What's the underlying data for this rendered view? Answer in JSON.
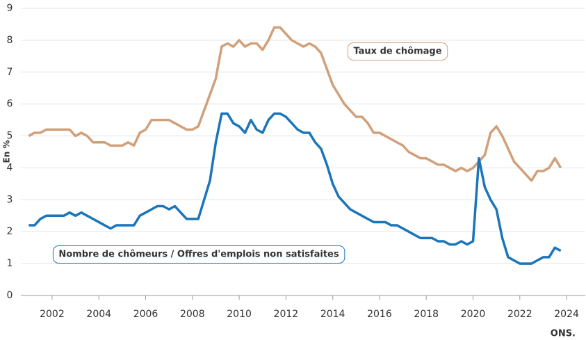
{
  "chart_data": {
    "type": "line",
    "ylabel": "En %",
    "source": "ONS.",
    "x": [
      2001,
      2001.25,
      2001.5,
      2001.75,
      2002,
      2002.25,
      2002.5,
      2002.75,
      2003,
      2003.25,
      2003.5,
      2003.75,
      2004,
      2004.25,
      2004.5,
      2004.75,
      2005,
      2005.25,
      2005.5,
      2005.75,
      2006,
      2006.25,
      2006.5,
      2006.75,
      2007,
      2007.25,
      2007.5,
      2007.75,
      2008,
      2008.25,
      2008.5,
      2008.75,
      2009,
      2009.25,
      2009.5,
      2009.75,
      2010,
      2010.25,
      2010.5,
      2010.75,
      2011,
      2011.25,
      2011.5,
      2011.75,
      2012,
      2012.25,
      2012.5,
      2012.75,
      2013,
      2013.25,
      2013.5,
      2013.75,
      2014,
      2014.25,
      2014.5,
      2014.75,
      2015,
      2015.25,
      2015.5,
      2015.75,
      2016,
      2016.25,
      2016.5,
      2016.75,
      2017,
      2017.25,
      2017.5,
      2017.75,
      2018,
      2018.25,
      2018.5,
      2018.75,
      2019,
      2019.25,
      2019.5,
      2019.75,
      2020,
      2020.25,
      2020.5,
      2020.75,
      2021,
      2021.25,
      2021.5,
      2021.75,
      2022,
      2022.25,
      2022.5,
      2022.75,
      2023,
      2023.25,
      2023.5,
      2023.75
    ],
    "series": [
      {
        "name": "Taux de chômage",
        "color": "#d0a07a",
        "values": [
          5.0,
          5.1,
          5.1,
          5.2,
          5.2,
          5.2,
          5.2,
          5.2,
          5.0,
          5.1,
          5.0,
          4.8,
          4.8,
          4.8,
          4.7,
          4.7,
          4.7,
          4.8,
          4.7,
          5.1,
          5.2,
          5.5,
          5.5,
          5.5,
          5.5,
          5.4,
          5.3,
          5.2,
          5.2,
          5.3,
          5.8,
          6.3,
          6.8,
          7.8,
          7.9,
          7.8,
          8.0,
          7.8,
          7.9,
          7.9,
          7.7,
          8.0,
          8.4,
          8.4,
          8.2,
          8.0,
          7.9,
          7.8,
          7.9,
          7.8,
          7.6,
          7.1,
          6.6,
          6.3,
          6.0,
          5.8,
          5.6,
          5.6,
          5.4,
          5.1,
          5.1,
          5.0,
          4.9,
          4.8,
          4.7,
          4.5,
          4.4,
          4.3,
          4.3,
          4.2,
          4.1,
          4.1,
          4.0,
          3.9,
          4.0,
          3.9,
          4.0,
          4.2,
          4.4,
          5.1,
          5.3,
          5.0,
          4.6,
          4.2,
          4.0,
          3.8,
          3.6,
          3.9,
          3.9,
          4.0,
          4.3,
          4.0
        ]
      },
      {
        "name": "Nombre de chômeurs / Offres d'emplois non satisfaites",
        "color": "#1a75bb",
        "values": [
          2.2,
          2.2,
          2.4,
          2.5,
          2.5,
          2.5,
          2.5,
          2.6,
          2.5,
          2.6,
          2.5,
          2.4,
          2.3,
          2.2,
          2.1,
          2.2,
          2.2,
          2.2,
          2.2,
          2.5,
          2.6,
          2.7,
          2.8,
          2.8,
          2.7,
          2.8,
          2.6,
          2.4,
          2.4,
          2.4,
          3.0,
          3.6,
          4.8,
          5.7,
          5.7,
          5.4,
          5.3,
          5.1,
          5.5,
          5.2,
          5.1,
          5.5,
          5.7,
          5.7,
          5.6,
          5.4,
          5.2,
          5.1,
          5.1,
          4.8,
          4.6,
          4.1,
          3.5,
          3.1,
          2.9,
          2.7,
          2.6,
          2.5,
          2.4,
          2.3,
          2.3,
          2.3,
          2.2,
          2.2,
          2.1,
          2.0,
          1.9,
          1.8,
          1.8,
          1.8,
          1.7,
          1.7,
          1.6,
          1.6,
          1.7,
          1.6,
          1.7,
          4.3,
          3.4,
          3.0,
          2.7,
          1.8,
          1.2,
          1.1,
          1.0,
          1.0,
          1.0,
          1.1,
          1.2,
          1.2,
          1.5,
          1.4
        ]
      }
    ],
    "xlim": [
      2001,
      2024.8
    ],
    "xticks": [
      2002,
      2004,
      2006,
      2008,
      2010,
      2012,
      2014,
      2016,
      2018,
      2020,
      2022,
      2024
    ],
    "ylim": [
      0,
      9
    ],
    "yticks": [
      0,
      1,
      2,
      3,
      4,
      5,
      6,
      7,
      8,
      9
    ],
    "grid": true
  }
}
